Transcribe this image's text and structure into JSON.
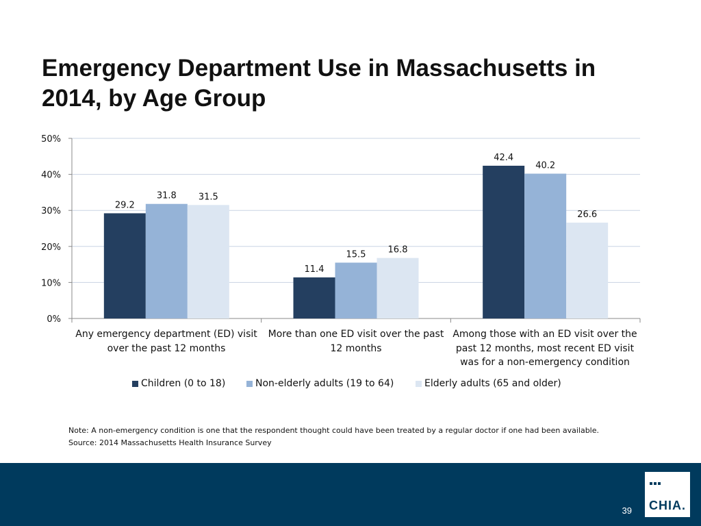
{
  "slide": {
    "title": "Emergency Department Use in Massachusetts in 2014, by Age Group",
    "note": "Note: A non-emergency condition is one that the respondent thought could have been treated by a regular doctor if one had been available.",
    "source": "Source:  2014 Massachusetts Health Insurance Survey",
    "page_number": "39",
    "logo_text": "CHIA."
  },
  "colors": {
    "series": [
      "#243f60",
      "#95b3d7",
      "#dce6f2"
    ],
    "footer": "#003a5d"
  },
  "chart_data": {
    "type": "bar",
    "title": "",
    "xlabel": "",
    "ylabel": "",
    "ylim": [
      0,
      50
    ],
    "y_ticks": [
      0,
      10,
      20,
      30,
      40,
      50
    ],
    "y_tick_labels": [
      "0%",
      "10%",
      "20%",
      "30%",
      "40%",
      "50%"
    ],
    "grid": true,
    "legend_position": "bottom",
    "categories": [
      "Any emergency department (ED) visit over the past 12 months",
      "More than one ED visit over the past 12 months",
      "Among those with an ED visit over the past 12 months, most recent ED visit was for a non-emergency condition"
    ],
    "series": [
      {
        "name": "Children (0 to 18)",
        "values": [
          29.2,
          11.4,
          42.4
        ]
      },
      {
        "name": "Non-elderly adults (19 to 64)",
        "values": [
          31.8,
          15.5,
          40.2
        ]
      },
      {
        "name": "Elderly adults (65 and older)",
        "values": [
          31.5,
          16.8,
          26.6
        ]
      }
    ]
  }
}
